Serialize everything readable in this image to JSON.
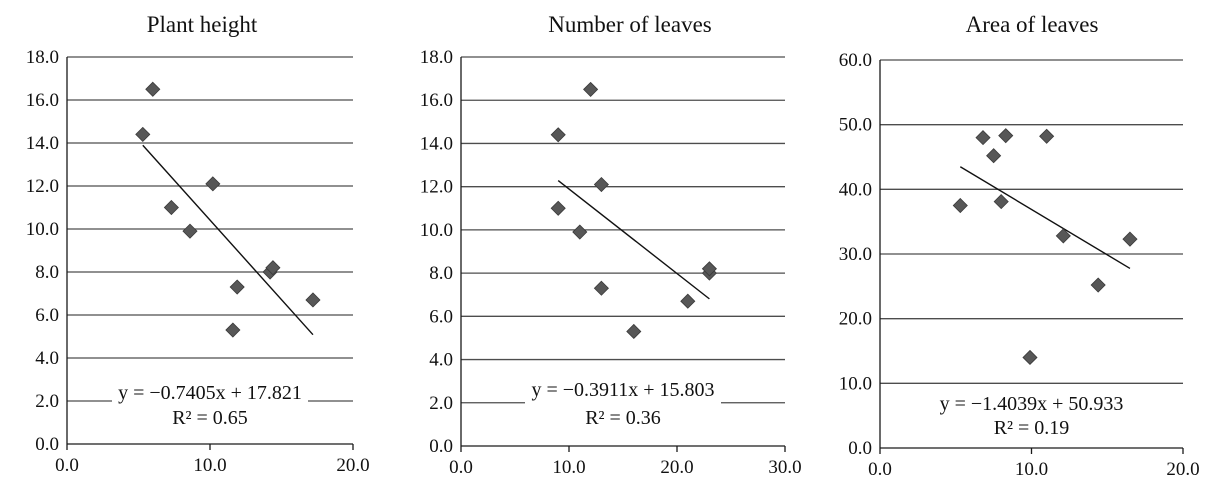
{
  "chart_data": [
    {
      "type": "scatter",
      "title": "Plant height",
      "xlim": [
        0,
        20
      ],
      "ylim": [
        0,
        18
      ],
      "x_ticks": [
        "0.0",
        "10.0",
        "20.0"
      ],
      "y_ticks": [
        "0.0",
        "2.0",
        "4.0",
        "6.0",
        "8.0",
        "10.0",
        "12.0",
        "14.0",
        "16.0",
        "18.0"
      ],
      "grid": "horizontal",
      "points": [
        {
          "x": 5.3,
          "y": 14.4
        },
        {
          "x": 6.0,
          "y": 16.5
        },
        {
          "x": 7.3,
          "y": 11.0
        },
        {
          "x": 8.6,
          "y": 9.9
        },
        {
          "x": 10.2,
          "y": 12.1
        },
        {
          "x": 11.6,
          "y": 5.3
        },
        {
          "x": 11.9,
          "y": 7.3
        },
        {
          "x": 14.2,
          "y": 8.0
        },
        {
          "x": 14.4,
          "y": 8.2
        },
        {
          "x": 17.2,
          "y": 6.7
        }
      ],
      "trendline": {
        "slope": -0.7405,
        "intercept": 17.821,
        "x_range": [
          5.3,
          17.2
        ]
      },
      "equation": "y = −0.7405x + 17.821",
      "r2_label": "R² = 0.65"
    },
    {
      "type": "scatter",
      "title": "Number of leaves",
      "xlim": [
        0,
        30
      ],
      "ylim": [
        0,
        18
      ],
      "x_ticks": [
        "0.0",
        "10.0",
        "20.0",
        "30.0"
      ],
      "y_ticks": [
        "0.0",
        "2.0",
        "4.0",
        "6.0",
        "8.0",
        "10.0",
        "12.0",
        "14.0",
        "16.0",
        "18.0"
      ],
      "grid": "horizontal",
      "points": [
        {
          "x": 9.0,
          "y": 14.4
        },
        {
          "x": 9.0,
          "y": 11.0
        },
        {
          "x": 11.0,
          "y": 9.9
        },
        {
          "x": 12.0,
          "y": 16.5
        },
        {
          "x": 13.0,
          "y": 12.1
        },
        {
          "x": 13.0,
          "y": 7.3
        },
        {
          "x": 16.0,
          "y": 5.3
        },
        {
          "x": 21.0,
          "y": 6.7
        },
        {
          "x": 23.0,
          "y": 8.0
        },
        {
          "x": 23.0,
          "y": 8.2
        }
      ],
      "trendline": {
        "slope": -0.3911,
        "intercept": 15.803,
        "x_range": [
          9.0,
          23.0
        ]
      },
      "equation": "y = −0.3911x + 15.803",
      "r2_label": "R² = 0.36"
    },
    {
      "type": "scatter",
      "title": "Area of leaves",
      "xlim": [
        0,
        20
      ],
      "ylim": [
        0,
        60
      ],
      "x_ticks": [
        "0.0",
        "10.0",
        "20.0"
      ],
      "y_ticks": [
        "0.0",
        "10.0",
        "20.0",
        "30.0",
        "40.0",
        "50.0",
        "60.0"
      ],
      "grid": "horizontal",
      "points": [
        {
          "x": 5.3,
          "y": 37.5
        },
        {
          "x": 6.8,
          "y": 48.0
        },
        {
          "x": 7.5,
          "y": 45.2
        },
        {
          "x": 8.0,
          "y": 38.1
        },
        {
          "x": 8.3,
          "y": 48.3
        },
        {
          "x": 9.9,
          "y": 14.0
        },
        {
          "x": 11.0,
          "y": 48.2
        },
        {
          "x": 12.1,
          "y": 32.8
        },
        {
          "x": 14.4,
          "y": 25.2
        },
        {
          "x": 16.5,
          "y": 32.3
        }
      ],
      "trendline": {
        "slope": -1.4039,
        "intercept": 50.933,
        "x_range": [
          5.3,
          16.5
        ]
      },
      "equation": "y = −1.4039x + 50.933",
      "r2_label": "R² = 0.19"
    }
  ]
}
